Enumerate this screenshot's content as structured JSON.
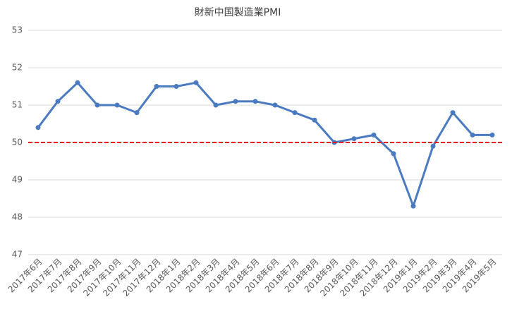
{
  "chart_data": {
    "type": "line",
    "title": "財新中国製造業PMI",
    "categories": [
      "2017年6月",
      "2017年7月",
      "2017年8月",
      "2017年9月",
      "2017年10月",
      "2017年11月",
      "2017年12月",
      "2018年1月",
      "2018年2月",
      "2018年3月",
      "2018年4月",
      "2018年5月",
      "2018年6月",
      "2018年7月",
      "2018年8月",
      "2018年9月",
      "2018年10月",
      "2018年11月",
      "2018年12月",
      "2019年1月",
      "2019年2月",
      "2019年3月",
      "2019年4月",
      "2019年5月"
    ],
    "values": [
      50.4,
      51.1,
      51.6,
      51.0,
      51.0,
      50.8,
      51.5,
      51.5,
      51.6,
      51.0,
      51.1,
      51.1,
      51.0,
      50.8,
      50.6,
      50.0,
      50.1,
      50.2,
      49.7,
      48.3,
      49.9,
      50.8,
      50.2,
      50.2
    ],
    "color": "#4a7ac0",
    "reference_line": 50,
    "reference_color": "#e02020",
    "ylim": [
      47,
      53
    ],
    "yticks": [
      47,
      48,
      49,
      50,
      51,
      52,
      53
    ],
    "grid": true
  }
}
